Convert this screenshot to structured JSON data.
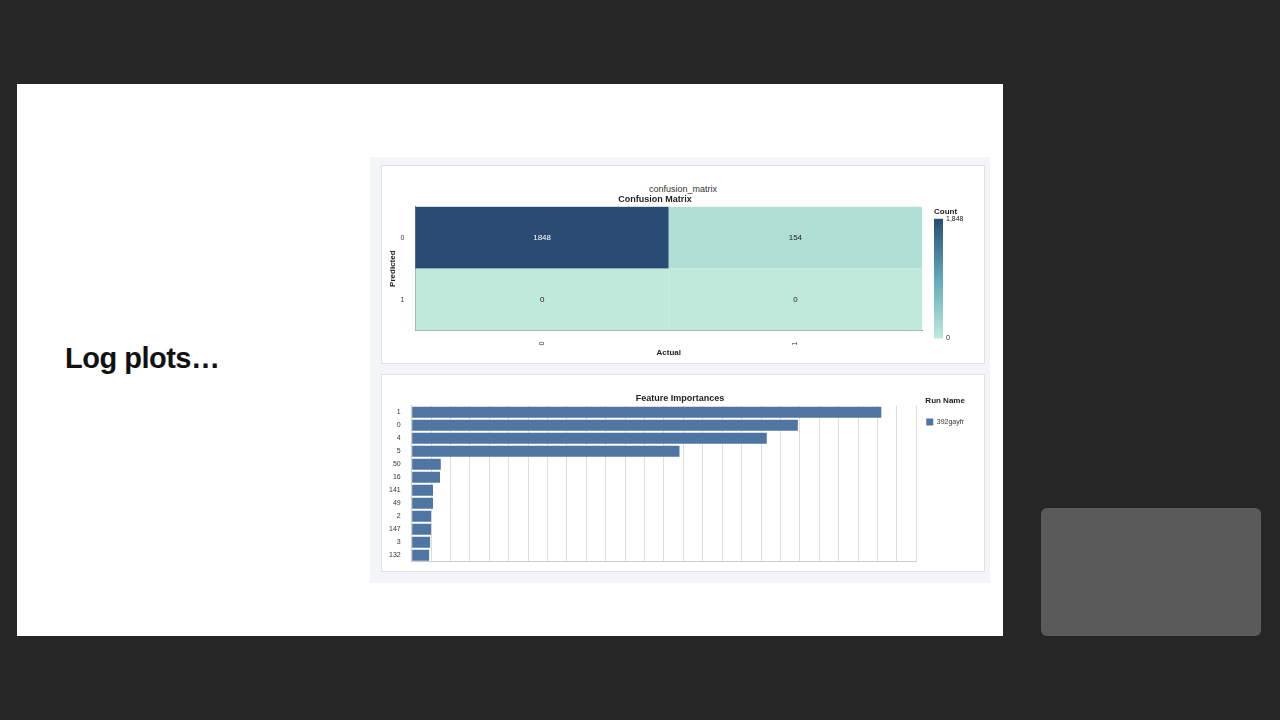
{
  "slide": {
    "heading": "Log plots…"
  },
  "chart_data": [
    {
      "type": "heatmap",
      "panel_title": "confusion_matrix",
      "title": "Confusion Matrix",
      "x_label": "Actual",
      "y_label": "Predicted",
      "x_categories": [
        "0",
        "1"
      ],
      "y_categories": [
        "0",
        "1"
      ],
      "cells": [
        [
          1848,
          154
        ],
        [
          0,
          0
        ]
      ],
      "data_labels": true,
      "colorbar": {
        "label": "Count",
        "range": [
          0,
          1848
        ],
        "ticks": [
          0,
          {
            "value": 1848,
            "label": "1,848"
          }
        ]
      }
    },
    {
      "type": "bar",
      "orientation": "horizontal",
      "title": "Feature Importances",
      "categories": [
        "1",
        "0",
        "4",
        "5",
        "50",
        "16",
        "141",
        "49",
        "2",
        "147",
        "3",
        "132"
      ],
      "series": [
        {
          "name": "392gayfr",
          "color": "#4f76a3",
          "values": [
            0.242,
            0.199,
            0.183,
            0.138,
            0.015,
            0.0146,
            0.011,
            0.011,
            0.01,
            0.01,
            0.0095,
            0.009
          ]
        }
      ],
      "xlim": [
        0,
        0.26
      ],
      "xticks": [
        0,
        0.01,
        0.02,
        0.03,
        0.04,
        0.05,
        0.06,
        0.07,
        0.08,
        0.09,
        0.1,
        0.11,
        0.12,
        0.13,
        0.14,
        0.15,
        0.16,
        0.17,
        0.18,
        0.19,
        0.2,
        0.21,
        0.22,
        0.23,
        0.24,
        0.25,
        0.26
      ],
      "grid": true,
      "tick_labels": "y",
      "legend": "top-right",
      "legend_title": "Run Name"
    }
  ]
}
